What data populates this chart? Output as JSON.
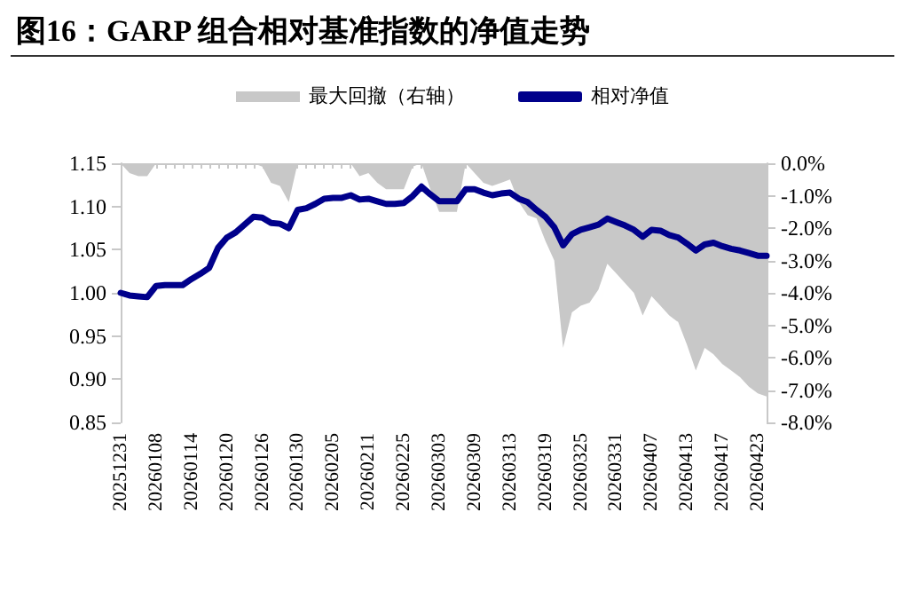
{
  "chart_data": {
    "type": "line",
    "title": "图16：GARP 组合相对基准指数的净值走势",
    "categories": [
      "20251231",
      null,
      null,
      null,
      "20260108",
      null,
      null,
      null,
      "20260114",
      null,
      null,
      null,
      "20260120",
      null,
      null,
      null,
      "20260126",
      null,
      null,
      null,
      "20260130",
      null,
      null,
      null,
      "20260205",
      null,
      null,
      null,
      "20260211",
      null,
      null,
      null,
      "20260225",
      null,
      null,
      null,
      "20260303",
      null,
      null,
      null,
      "20260309",
      null,
      null,
      null,
      "20260313",
      null,
      null,
      null,
      "20260319",
      null,
      null,
      null,
      "20260325",
      null,
      null,
      null,
      "20260331",
      null,
      null,
      null,
      "20260407",
      null,
      null,
      null,
      "20260413",
      null,
      null,
      null,
      "20260417",
      null,
      null,
      null,
      "20260423",
      null
    ],
    "series": [
      {
        "name": "最大回撤（右轴）",
        "type": "area",
        "axis": "y2",
        "color": "#c8c8c8",
        "values": [
          0,
          -0.3,
          -0.4,
          -0.4,
          0,
          0,
          0,
          0,
          0,
          0,
          0,
          0,
          0,
          0,
          0,
          0,
          -0.1,
          -0.6,
          -0.7,
          -1.2,
          0,
          0,
          0,
          0,
          0,
          0,
          0,
          -0.4,
          -0.3,
          -0.6,
          -0.8,
          -0.8,
          -0.8,
          -0.1,
          0,
          -0.8,
          -1.5,
          -1.5,
          -1.5,
          0,
          -0.3,
          -0.6,
          -0.7,
          -0.6,
          -0.5,
          -1.2,
          -1.6,
          -1.7,
          -2.4,
          -3.0,
          -5.7,
          -4.6,
          -4.4,
          -4.3,
          -3.9,
          -3.1,
          -3.4,
          -3.7,
          -4.0,
          -4.7,
          -4.1,
          -4.4,
          -4.7,
          -4.9,
          -5.6,
          -6.4,
          -5.7,
          -5.9,
          -6.2,
          -6.4,
          -6.6,
          -6.9,
          -7.1,
          -7.2
        ]
      },
      {
        "name": "相对净值",
        "type": "line",
        "color": "#00008b",
        "values": [
          1.0,
          0.997,
          0.996,
          0.995,
          1.008,
          1.009,
          1.009,
          1.009,
          1.016,
          1.022,
          1.029,
          1.052,
          1.064,
          1.07,
          1.079,
          1.088,
          1.087,
          1.081,
          1.08,
          1.075,
          1.096,
          1.098,
          1.103,
          1.109,
          1.11,
          1.11,
          1.113,
          1.108,
          1.109,
          1.106,
          1.103,
          1.103,
          1.104,
          1.112,
          1.123,
          1.114,
          1.106,
          1.106,
          1.106,
          1.12,
          1.12,
          1.116,
          1.113,
          1.115,
          1.116,
          1.109,
          1.105,
          1.096,
          1.088,
          1.076,
          1.055,
          1.068,
          1.073,
          1.076,
          1.079,
          1.086,
          1.082,
          1.078,
          1.073,
          1.065,
          1.073,
          1.072,
          1.067,
          1.064,
          1.057,
          1.049,
          1.056,
          1.058,
          1.054,
          1.051,
          1.049,
          1.046,
          1.043,
          1.043
        ]
      }
    ],
    "ylim": [
      0.85,
      1.15
    ],
    "yticks": [
      {
        "value": 0.85,
        "label": "0.85"
      },
      {
        "value": 0.9,
        "label": "0.90"
      },
      {
        "value": 0.95,
        "label": "0.95"
      },
      {
        "value": 1.0,
        "label": "1.00"
      },
      {
        "value": 1.05,
        "label": "1.05"
      },
      {
        "value": 1.1,
        "label": "1.10"
      },
      {
        "value": 1.15,
        "label": "1.15"
      }
    ],
    "y2lim": [
      -8,
      0
    ],
    "y2ticks": [
      {
        "value": 0,
        "label": "0.0%"
      },
      {
        "value": -1,
        "label": "-1.0%"
      },
      {
        "value": -2,
        "label": "-2.0%"
      },
      {
        "value": -3,
        "label": "-3.0%"
      },
      {
        "value": -4,
        "label": "-4.0%"
      },
      {
        "value": -5,
        "label": "-5.0%"
      },
      {
        "value": -6,
        "label": "-6.0%"
      },
      {
        "value": -7,
        "label": "-7.0%"
      },
      {
        "value": -8,
        "label": "-8.0%"
      }
    ],
    "legend": "top",
    "grid": false,
    "marker": "none",
    "line_style": "solid"
  }
}
